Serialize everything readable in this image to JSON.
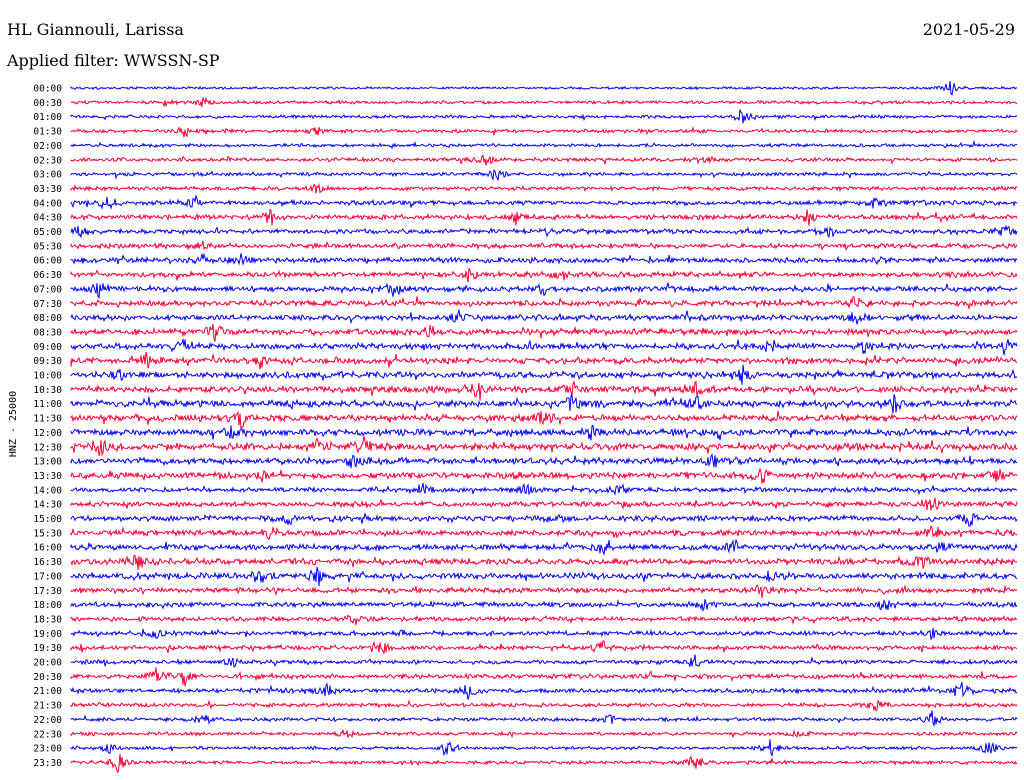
{
  "header": {
    "station": "HL Giannouli, Larissa",
    "date": "2021-05-29",
    "filter": "Applied filter: WWSSN-SP"
  },
  "chart_data": {
    "type": "line",
    "title": "HL Giannouli, Larissa",
    "subtitle": "Applied filter: WWSSN-SP",
    "date": "2021-05-29",
    "ylabel": "HNZ - 25000",
    "xlabel": "",
    "grid": false,
    "legend": "none",
    "trace_colors": [
      "#0000ff",
      "#ff0033"
    ],
    "row_interval_minutes": 30,
    "rows": [
      {
        "label": "00:00",
        "color": "#0000ff",
        "activity": 0.15,
        "events": [
          {
            "pos": 0.93,
            "amp": 1.0
          }
        ]
      },
      {
        "label": "00:30",
        "color": "#ff0033",
        "activity": 0.25,
        "events": [
          {
            "pos": 0.1,
            "amp": 0.3
          },
          {
            "pos": 0.14,
            "amp": 0.4
          }
        ]
      },
      {
        "label": "01:00",
        "color": "#0000ff",
        "activity": 0.25,
        "events": [
          {
            "pos": 0.71,
            "amp": 1.0
          }
        ]
      },
      {
        "label": "01:30",
        "color": "#ff0033",
        "activity": 0.3,
        "events": [
          {
            "pos": 0.12,
            "amp": 0.5
          },
          {
            "pos": 0.26,
            "amp": 0.3
          }
        ]
      },
      {
        "label": "02:00",
        "color": "#0000ff",
        "activity": 0.25,
        "events": []
      },
      {
        "label": "02:30",
        "color": "#ff0033",
        "activity": 0.35,
        "events": [
          {
            "pos": 0.44,
            "amp": 0.6
          },
          {
            "pos": 0.67,
            "amp": 0.4
          }
        ]
      },
      {
        "label": "03:00",
        "color": "#0000ff",
        "activity": 0.3,
        "events": [
          {
            "pos": 0.45,
            "amp": 0.9
          }
        ]
      },
      {
        "label": "03:30",
        "color": "#ff0033",
        "activity": 0.35,
        "events": [
          {
            "pos": 0.26,
            "amp": 0.5
          }
        ]
      },
      {
        "label": "04:00",
        "color": "#0000ff",
        "activity": 0.45,
        "events": [
          {
            "pos": 0.04,
            "amp": 0.6
          },
          {
            "pos": 0.13,
            "amp": 0.6
          },
          {
            "pos": 0.85,
            "amp": 0.6
          }
        ]
      },
      {
        "label": "04:30",
        "color": "#ff0033",
        "activity": 0.5,
        "events": [
          {
            "pos": 0.21,
            "amp": 0.6
          },
          {
            "pos": 0.47,
            "amp": 0.6
          },
          {
            "pos": 0.78,
            "amp": 0.7
          }
        ]
      },
      {
        "label": "05:00",
        "color": "#0000ff",
        "activity": 0.5,
        "events": [
          {
            "pos": 0.01,
            "amp": 0.5
          },
          {
            "pos": 0.8,
            "amp": 0.5
          },
          {
            "pos": 0.99,
            "amp": 0.6
          }
        ]
      },
      {
        "label": "05:30",
        "color": "#ff0033",
        "activity": 0.5,
        "events": [
          {
            "pos": 0.14,
            "amp": 0.9
          }
        ]
      },
      {
        "label": "06:00",
        "color": "#0000ff",
        "activity": 0.55,
        "events": [
          {
            "pos": 0.14,
            "amp": 0.6
          },
          {
            "pos": 0.18,
            "amp": 0.5
          }
        ]
      },
      {
        "label": "06:30",
        "color": "#ff0033",
        "activity": 0.55,
        "events": [
          {
            "pos": 0.42,
            "amp": 0.6
          },
          {
            "pos": 0.52,
            "amp": 0.6
          }
        ]
      },
      {
        "label": "07:00",
        "color": "#0000ff",
        "activity": 0.6,
        "events": [
          {
            "pos": 0.03,
            "amp": 0.7
          },
          {
            "pos": 0.34,
            "amp": 0.7
          },
          {
            "pos": 0.5,
            "amp": 0.6
          }
        ]
      },
      {
        "label": "07:30",
        "color": "#ff0033",
        "activity": 0.6,
        "events": [
          {
            "pos": 0.83,
            "amp": 0.7
          }
        ]
      },
      {
        "label": "08:00",
        "color": "#0000ff",
        "activity": 0.6,
        "events": [
          {
            "pos": 0.41,
            "amp": 0.6
          },
          {
            "pos": 0.83,
            "amp": 0.5
          }
        ]
      },
      {
        "label": "08:30",
        "color": "#ff0033",
        "activity": 0.65,
        "events": [
          {
            "pos": 0.15,
            "amp": 0.9
          },
          {
            "pos": 0.38,
            "amp": 0.6
          }
        ]
      },
      {
        "label": "09:00",
        "color": "#0000ff",
        "activity": 0.65,
        "events": [
          {
            "pos": 0.12,
            "amp": 0.6
          },
          {
            "pos": 0.74,
            "amp": 0.6
          },
          {
            "pos": 0.84,
            "amp": 0.7
          },
          {
            "pos": 0.99,
            "amp": 0.6
          }
        ]
      },
      {
        "label": "09:30",
        "color": "#ff0033",
        "activity": 0.7,
        "events": [
          {
            "pos": 0.08,
            "amp": 0.6
          },
          {
            "pos": 0.2,
            "amp": 0.7
          }
        ]
      },
      {
        "label": "10:00",
        "color": "#0000ff",
        "activity": 0.7,
        "events": [
          {
            "pos": 0.05,
            "amp": 0.7
          },
          {
            "pos": 0.71,
            "amp": 0.8
          }
        ]
      },
      {
        "label": "10:30",
        "color": "#ff0033",
        "activity": 0.7,
        "events": [
          {
            "pos": 0.43,
            "amp": 0.7
          },
          {
            "pos": 0.53,
            "amp": 0.7
          },
          {
            "pos": 0.66,
            "amp": 0.8
          }
        ]
      },
      {
        "label": "11:00",
        "color": "#0000ff",
        "activity": 0.75,
        "events": [
          {
            "pos": 0.53,
            "amp": 0.8
          },
          {
            "pos": 0.66,
            "amp": 0.9
          },
          {
            "pos": 0.87,
            "amp": 0.9
          }
        ]
      },
      {
        "label": "11:30",
        "color": "#ff0033",
        "activity": 0.75,
        "events": [
          {
            "pos": 0.18,
            "amp": 0.7
          },
          {
            "pos": 0.5,
            "amp": 0.7
          }
        ]
      },
      {
        "label": "12:00",
        "color": "#0000ff",
        "activity": 0.75,
        "events": [
          {
            "pos": 0.17,
            "amp": 0.6
          },
          {
            "pos": 0.55,
            "amp": 0.7
          }
        ]
      },
      {
        "label": "12:30",
        "color": "#ff0033",
        "activity": 0.8,
        "events": [
          {
            "pos": 0.03,
            "amp": 1.0
          },
          {
            "pos": 0.26,
            "amp": 0.8
          },
          {
            "pos": 0.31,
            "amp": 0.8
          }
        ]
      },
      {
        "label": "13:00",
        "color": "#0000ff",
        "activity": 0.7,
        "events": [
          {
            "pos": 0.3,
            "amp": 0.8
          },
          {
            "pos": 0.68,
            "amp": 0.7
          }
        ]
      },
      {
        "label": "13:30",
        "color": "#ff0033",
        "activity": 0.7,
        "events": [
          {
            "pos": 0.2,
            "amp": 0.6
          },
          {
            "pos": 0.73,
            "amp": 0.7
          },
          {
            "pos": 0.98,
            "amp": 0.7
          }
        ]
      },
      {
        "label": "14:00",
        "color": "#0000ff",
        "activity": 0.45,
        "events": [
          {
            "pos": 0.37,
            "amp": 0.9
          },
          {
            "pos": 0.48,
            "amp": 0.7
          },
          {
            "pos": 0.58,
            "amp": 0.6
          }
        ]
      },
      {
        "label": "14:30",
        "color": "#ff0033",
        "activity": 0.55,
        "events": [
          {
            "pos": 0.91,
            "amp": 0.7
          }
        ]
      },
      {
        "label": "15:00",
        "color": "#0000ff",
        "activity": 0.6,
        "events": [
          {
            "pos": 0.23,
            "amp": 0.9
          },
          {
            "pos": 0.95,
            "amp": 0.7
          }
        ]
      },
      {
        "label": "15:30",
        "color": "#ff0033",
        "activity": 0.6,
        "events": [
          {
            "pos": 0.21,
            "amp": 0.6
          },
          {
            "pos": 0.91,
            "amp": 0.6
          }
        ]
      },
      {
        "label": "16:00",
        "color": "#0000ff",
        "activity": 0.65,
        "events": [
          {
            "pos": 0.56,
            "amp": 0.6
          },
          {
            "pos": 0.7,
            "amp": 0.7
          },
          {
            "pos": 0.92,
            "amp": 0.7
          }
        ]
      },
      {
        "label": "16:30",
        "color": "#ff0033",
        "activity": 0.7,
        "events": [
          {
            "pos": 0.07,
            "amp": 0.8
          },
          {
            "pos": 0.9,
            "amp": 0.7
          }
        ]
      },
      {
        "label": "17:00",
        "color": "#0000ff",
        "activity": 0.7,
        "events": [
          {
            "pos": 0.2,
            "amp": 0.7
          },
          {
            "pos": 0.26,
            "amp": 0.7
          },
          {
            "pos": 0.74,
            "amp": 0.6
          }
        ]
      },
      {
        "label": "17:30",
        "color": "#ff0033",
        "activity": 0.55,
        "events": [
          {
            "pos": 0.73,
            "amp": 0.6
          }
        ]
      },
      {
        "label": "18:00",
        "color": "#0000ff",
        "activity": 0.5,
        "events": [
          {
            "pos": 0.67,
            "amp": 0.7
          },
          {
            "pos": 0.86,
            "amp": 0.7
          }
        ]
      },
      {
        "label": "18:30",
        "color": "#ff0033",
        "activity": 0.45,
        "events": [
          {
            "pos": 0.3,
            "amp": 0.5
          }
        ]
      },
      {
        "label": "19:00",
        "color": "#0000ff",
        "activity": 0.45,
        "events": [
          {
            "pos": 0.09,
            "amp": 0.5
          },
          {
            "pos": 0.35,
            "amp": 0.5
          },
          {
            "pos": 0.91,
            "amp": 0.7
          }
        ]
      },
      {
        "label": "19:30",
        "color": "#ff0033",
        "activity": 0.45,
        "events": [
          {
            "pos": 0.33,
            "amp": 0.6
          },
          {
            "pos": 0.56,
            "amp": 0.8
          }
        ]
      },
      {
        "label": "20:00",
        "color": "#0000ff",
        "activity": 0.4,
        "events": [
          {
            "pos": 0.17,
            "amp": 0.6
          },
          {
            "pos": 0.66,
            "amp": 0.7
          }
        ]
      },
      {
        "label": "20:30",
        "color": "#ff0033",
        "activity": 0.45,
        "events": [
          {
            "pos": 0.09,
            "amp": 0.7
          },
          {
            "pos": 0.12,
            "amp": 0.8
          }
        ]
      },
      {
        "label": "21:00",
        "color": "#0000ff",
        "activity": 0.45,
        "events": [
          {
            "pos": 0.27,
            "amp": 0.8
          },
          {
            "pos": 0.42,
            "amp": 0.7
          },
          {
            "pos": 0.94,
            "amp": 0.8
          }
        ]
      },
      {
        "label": "21:30",
        "color": "#ff0033",
        "activity": 0.35,
        "events": [
          {
            "pos": 0.85,
            "amp": 0.6
          }
        ]
      },
      {
        "label": "22:00",
        "color": "#0000ff",
        "activity": 0.3,
        "events": [
          {
            "pos": 0.14,
            "amp": 0.7
          },
          {
            "pos": 0.57,
            "amp": 0.4
          },
          {
            "pos": 0.91,
            "amp": 0.8
          }
        ]
      },
      {
        "label": "22:30",
        "color": "#ff0033",
        "activity": 0.3,
        "events": [
          {
            "pos": 0.29,
            "amp": 0.5
          },
          {
            "pos": 0.77,
            "amp": 0.5
          }
        ]
      },
      {
        "label": "23:00",
        "color": "#0000ff",
        "activity": 0.25,
        "events": [
          {
            "pos": 0.04,
            "amp": 0.6
          },
          {
            "pos": 0.4,
            "amp": 0.7
          },
          {
            "pos": 0.74,
            "amp": 1.0
          },
          {
            "pos": 0.97,
            "amp": 0.8
          }
        ]
      },
      {
        "label": "23:30",
        "color": "#ff0033",
        "activity": 0.3,
        "events": [
          {
            "pos": 0.05,
            "amp": 1.0
          },
          {
            "pos": 0.66,
            "amp": 1.0
          }
        ]
      }
    ]
  }
}
